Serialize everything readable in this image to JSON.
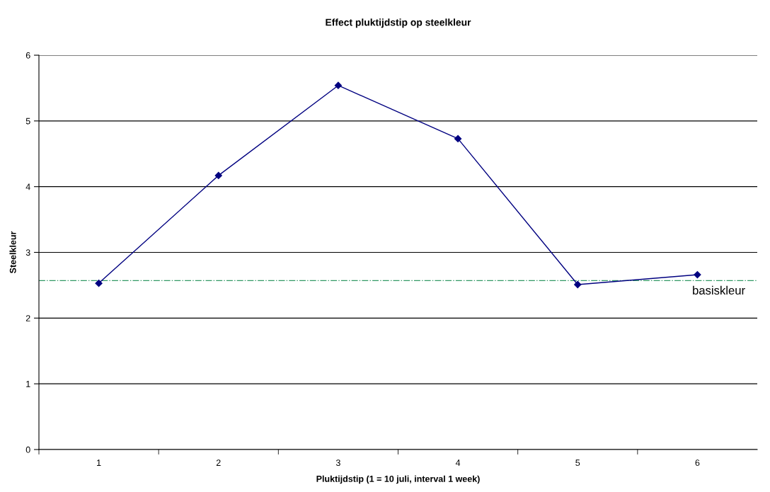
{
  "chart_data": {
    "type": "line",
    "title": "Effect pluktijdstip op steelkleur",
    "xlabel": "Pluktijdstip (1 = 10 juli, interval 1 week)",
    "ylabel": "Steelkleur",
    "categories": [
      "1",
      "2",
      "3",
      "4",
      "5",
      "6"
    ],
    "series": [
      {
        "color": "#000080",
        "values": [
          2.53,
          4.17,
          5.54,
          4.73,
          2.51,
          2.66
        ]
      }
    ],
    "ylim": [
      0,
      6
    ],
    "yticks": [
      0,
      1,
      2,
      3,
      4,
      5,
      6
    ],
    "grid": "y",
    "marker": "diamond",
    "line_style": "solid",
    "ref_lines": [
      {
        "axis": "y",
        "value": 2.57,
        "label": "basiskleur",
        "color": "#339966",
        "line_style": "dashdot"
      }
    ]
  }
}
